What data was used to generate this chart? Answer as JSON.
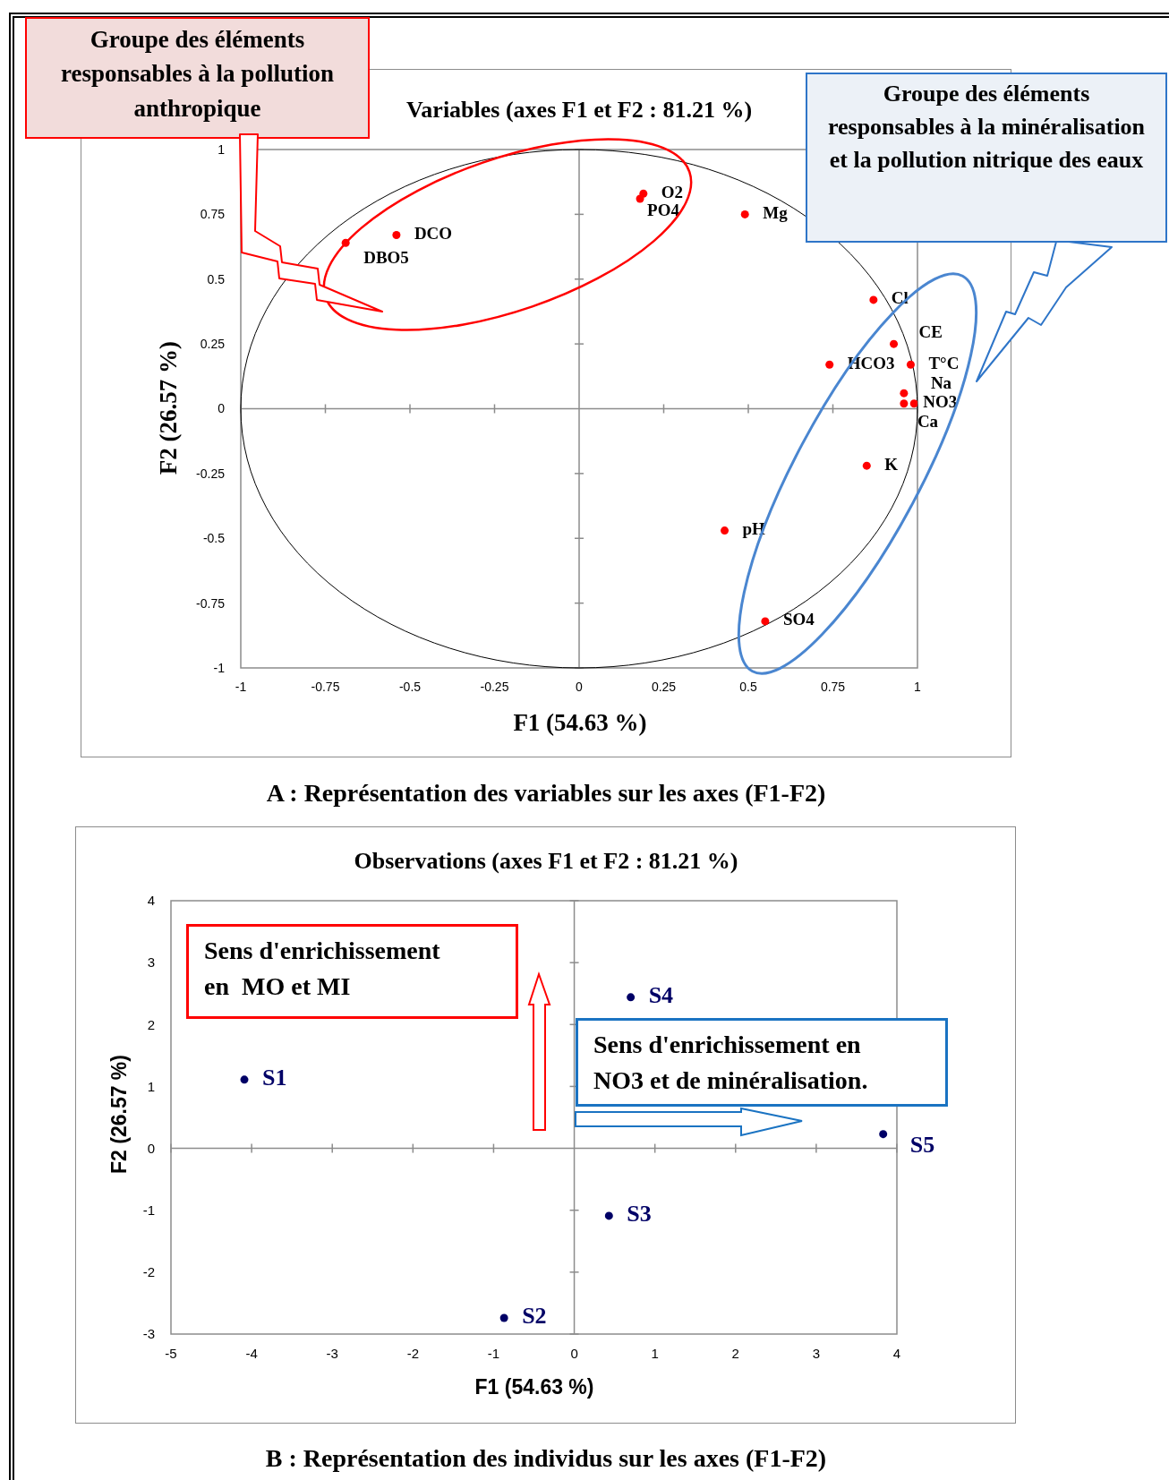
{
  "chart_data": [
    {
      "type": "scatter",
      "title": "Variables (axes F1 et F2 : 81.21 %)",
      "xlabel": "F1 (54.63 %)",
      "ylabel": "F2 (26.57 %)",
      "marker": "circle",
      "xlim": [
        -1,
        1
      ],
      "ylim": [
        -1,
        1
      ],
      "xticks": [
        -1,
        -0.75,
        -0.5,
        -0.25,
        0,
        0.25,
        0.5,
        0.75,
        1
      ],
      "yticks": [
        -1,
        -0.75,
        -0.5,
        -0.25,
        0,
        0.25,
        0.5,
        0.75,
        1
      ],
      "series": [
        {
          "name": "O2",
          "color": "#ff0000",
          "x": [
            0.19
          ],
          "values": [
            0.83
          ]
        },
        {
          "name": "PO4",
          "color": "#ff0000",
          "x": [
            0.18
          ],
          "values": [
            0.81
          ]
        },
        {
          "name": "Mg",
          "color": "#ff0000",
          "x": [
            0.49
          ],
          "values": [
            0.75
          ]
        },
        {
          "name": "DCO",
          "color": "#ff0000",
          "x": [
            -0.54
          ],
          "values": [
            0.67
          ]
        },
        {
          "name": "DBO5",
          "color": "#ff0000",
          "x": [
            -0.69
          ],
          "values": [
            0.64
          ]
        },
        {
          "name": "Cl",
          "color": "#ff0000",
          "x": [
            0.87
          ],
          "values": [
            0.42
          ]
        },
        {
          "name": "CE",
          "color": "#ff0000",
          "x": [
            0.93
          ],
          "values": [
            0.25
          ]
        },
        {
          "name": "HCO3",
          "color": "#ff0000",
          "x": [
            0.74
          ],
          "values": [
            0.17
          ]
        },
        {
          "name": "T°C",
          "color": "#ff0000",
          "x": [
            0.98
          ],
          "values": [
            0.17
          ]
        },
        {
          "name": "Na",
          "color": "#ff0000",
          "x": [
            0.96
          ],
          "values": [
            0.06
          ]
        },
        {
          "name": "NO3",
          "color": "#ff0000",
          "x": [
            0.99
          ],
          "values": [
            0.02
          ]
        },
        {
          "name": "Ca",
          "color": "#ff0000",
          "x": [
            0.96
          ],
          "values": [
            0.02
          ]
        },
        {
          "name": "K",
          "color": "#ff0000",
          "x": [
            0.85
          ],
          "values": [
            -0.22
          ]
        },
        {
          "name": "pH",
          "color": "#ff0000",
          "x": [
            0.43
          ],
          "values": [
            -0.47
          ]
        },
        {
          "name": "SO4",
          "color": "#ff0000",
          "x": [
            0.55
          ],
          "values": [
            -0.82
          ]
        }
      ],
      "annotations": [
        "Groupe des éléments responsables à la pollution anthropique",
        "Groupe des éléments responsables à la minéralisation et la pollution nitrique des eaux",
        "A : Représentation des variables sur les axes (F1-F2)"
      ]
    },
    {
      "type": "scatter",
      "title": "Observations (axes F1 et F2 : 81.21 %)",
      "xlabel": "F1 (54.63 %)",
      "ylabel": "F2 (26.57 %)",
      "marker": "circle",
      "xlim": [
        -5,
        4
      ],
      "ylim": [
        -3,
        4
      ],
      "xticks": [
        -5,
        -4,
        -3,
        -2,
        -1,
        0,
        1,
        2,
        3,
        4
      ],
      "yticks": [
        -3,
        -2,
        -1,
        0,
        1,
        2,
        3,
        4
      ],
      "series": [
        {
          "name": "S1",
          "color": "#000066",
          "x": [
            -4.09
          ],
          "values": [
            1.11
          ]
        },
        {
          "name": "S2",
          "color": "#000066",
          "x": [
            -0.87
          ],
          "values": [
            -2.74
          ]
        },
        {
          "name": "S3",
          "color": "#000066",
          "x": [
            0.43
          ],
          "values": [
            -1.09
          ]
        },
        {
          "name": "S4",
          "color": "#000066",
          "x": [
            0.7
          ],
          "values": [
            2.44
          ]
        },
        {
          "name": "S5",
          "color": "#000066",
          "x": [
            3.83
          ],
          "values": [
            0.23
          ]
        }
      ],
      "annotations": [
        "Sens d'enrichissement en  MO et MI",
        "Sens d'enrichissement en NO3 et de minéralisation.",
        "B : Représentation des individus sur les axes (F1-F2)"
      ]
    }
  ]
}
